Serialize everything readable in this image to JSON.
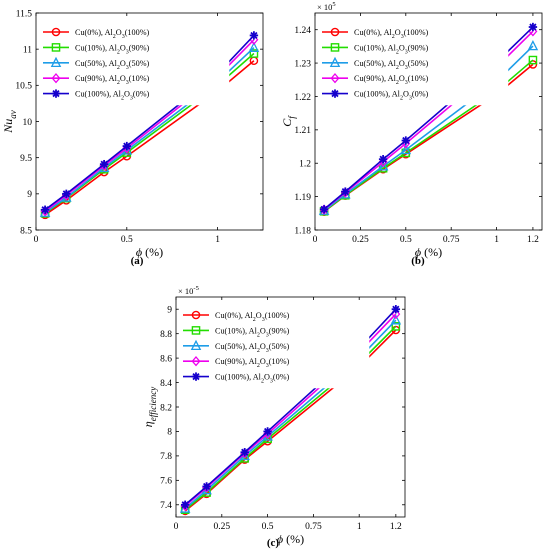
{
  "series_styles": [
    {
      "color": "#ff0000",
      "marker": "circle"
    },
    {
      "color": "#22dd00",
      "marker": "square"
    },
    {
      "color": "#1e9de8",
      "marker": "triangle"
    },
    {
      "color": "#ee00ee",
      "marker": "diamond"
    },
    {
      "color": "#1500cc",
      "marker": "star"
    }
  ],
  "chart_data": [
    {
      "id": "a",
      "type": "line",
      "caption": "(a)",
      "xlabel": "ϕ (%)",
      "ylabel_base": "Nu",
      "ylabel_sub": "av",
      "sci_base": "",
      "sci_exp": "",
      "xlim": [
        0,
        1.25
      ],
      "ylim": [
        8.5,
        11.5
      ],
      "xticks": [
        0,
        0.5,
        1
      ],
      "xtick_labels": [
        "0",
        "0.5",
        "1"
      ],
      "yticks": [
        8.5,
        9,
        9.5,
        10,
        10.5,
        11,
        11.5
      ],
      "ytick_labels": [
        "8.5",
        "9",
        "9.5",
        "10",
        "10.5",
        "11",
        "11.5"
      ],
      "legend_position": "top-left",
      "x": [
        0.05,
        0.167,
        0.375,
        0.5,
        1.0,
        1.2
      ],
      "series": [
        {
          "name_a": "Cu(0%), Al",
          "name_b": "O",
          "name_c": "(100%)",
          "values": [
            8.71,
            8.91,
            9.3,
            9.52,
            10.42,
            10.84
          ]
        },
        {
          "name_a": "Cu(10%), Al",
          "name_b": "O",
          "name_c": "(90%)",
          "values": [
            8.73,
            8.94,
            9.34,
            9.57,
            10.5,
            10.94
          ]
        },
        {
          "name_a": "Cu(50%), Al",
          "name_b": "O",
          "name_c": "(50%)",
          "values": [
            8.74,
            8.95,
            9.36,
            9.6,
            10.55,
            11.02
          ]
        },
        {
          "name_a": "Cu(90%), Al",
          "name_b": "O",
          "name_c": "(10%)",
          "values": [
            8.76,
            8.98,
            9.39,
            9.63,
            10.62,
            11.13
          ]
        },
        {
          "name_a": "Cu(100%), Al",
          "name_b": "O",
          "name_c": "(0%)",
          "values": [
            8.78,
            9.0,
            9.41,
            9.66,
            10.66,
            11.19
          ]
        }
      ]
    },
    {
      "id": "b",
      "type": "line",
      "caption": "(b)",
      "xlabel": "ϕ (%)",
      "ylabel_base": "C",
      "ylabel_sub": "f",
      "sci_base": "× 10",
      "sci_exp": "5",
      "xlim": [
        0,
        1.25
      ],
      "ylim": [
        1.18,
        1.245
      ],
      "xticks": [
        0,
        0.25,
        0.5,
        0.75,
        1,
        1.2
      ],
      "xtick_labels": [
        "0",
        "0.25",
        "0.5",
        "0.75",
        "1",
        "1.2"
      ],
      "yticks": [
        1.18,
        1.19,
        1.2,
        1.21,
        1.22,
        1.23,
        1.24
      ],
      "ytick_labels": [
        "1.18",
        "1.19",
        "1.2",
        "1.21",
        "1.22",
        "1.23",
        "1.24"
      ],
      "legend_position": "top-left",
      "x": [
        0.05,
        0.167,
        0.375,
        0.5,
        1.0,
        1.2
      ],
      "series": [
        {
          "name_a": "Cu(0%), Al",
          "name_b": "O",
          "name_c": "(100%)",
          "values": [
            1.1855,
            1.1903,
            1.1982,
            1.2027,
            1.2206,
            1.2296
          ]
        },
        {
          "name_a": "Cu(10%), Al",
          "name_b": "O",
          "name_c": "(90%)",
          "values": [
            1.1856,
            1.1904,
            1.1985,
            1.2031,
            1.2216,
            1.2309
          ]
        },
        {
          "name_a": "Cu(50%), Al",
          "name_b": "O",
          "name_c": "(50%)",
          "values": [
            1.1858,
            1.1907,
            1.1991,
            1.204,
            1.2245,
            1.2351
          ]
        },
        {
          "name_a": "Cu(90%), Al",
          "name_b": "O",
          "name_c": "(10%)",
          "values": [
            1.1861,
            1.1912,
            1.2004,
            1.2059,
            1.2288,
            1.2395
          ]
        },
        {
          "name_a": "Cu(100%), Al",
          "name_b": "O",
          "name_c": "(0%)",
          "values": [
            1.1862,
            1.1915,
            1.2012,
            1.2068,
            1.2302,
            1.2408
          ]
        }
      ]
    },
    {
      "id": "c",
      "type": "line",
      "caption": "(c)",
      "xlabel": "ϕ (%)",
      "ylabel_base": "η",
      "ylabel_sub": "efficiency",
      "sci_base": "× 10",
      "sci_exp": "-5",
      "xlim": [
        0,
        1.25
      ],
      "ylim": [
        7.3,
        9.1
      ],
      "xticks": [
        0,
        0.25,
        0.5,
        0.75,
        1,
        1.2
      ],
      "xtick_labels": [
        "0",
        "0.25",
        "0.5",
        "0.75",
        "1",
        "1.2"
      ],
      "yticks": [
        7.4,
        7.6,
        7.8,
        8,
        8.2,
        8.4,
        8.6,
        8.8,
        9
      ],
      "ytick_labels": [
        "7.4",
        "7.6",
        "7.8",
        "8",
        "8.2",
        "8.4",
        "8.6",
        "8.8",
        "9"
      ],
      "legend_position": "top-left",
      "x": [
        0.05,
        0.167,
        0.375,
        0.5,
        1.0,
        1.2
      ],
      "series": [
        {
          "name_a": "Cu(0%), Al",
          "name_b": "O",
          "name_c": "(100%)",
          "values": [
            7.35,
            7.49,
            7.77,
            7.92,
            8.53,
            8.83
          ]
        },
        {
          "name_a": "Cu(10%), Al",
          "name_b": "O",
          "name_c": "(90%)",
          "values": [
            7.36,
            7.5,
            7.78,
            7.94,
            8.56,
            8.86
          ]
        },
        {
          "name_a": "Cu(50%), Al",
          "name_b": "O",
          "name_c": "(50%)",
          "values": [
            7.37,
            7.52,
            7.8,
            7.96,
            8.6,
            8.91
          ]
        },
        {
          "name_a": "Cu(90%), Al",
          "name_b": "O",
          "name_c": "(10%)",
          "values": [
            7.39,
            7.54,
            7.82,
            7.98,
            8.65,
            8.96
          ]
        },
        {
          "name_a": "Cu(100%), Al",
          "name_b": "O",
          "name_c": "(0%)",
          "values": [
            7.4,
            7.55,
            7.83,
            8.0,
            8.68,
            9.0
          ]
        }
      ]
    }
  ]
}
